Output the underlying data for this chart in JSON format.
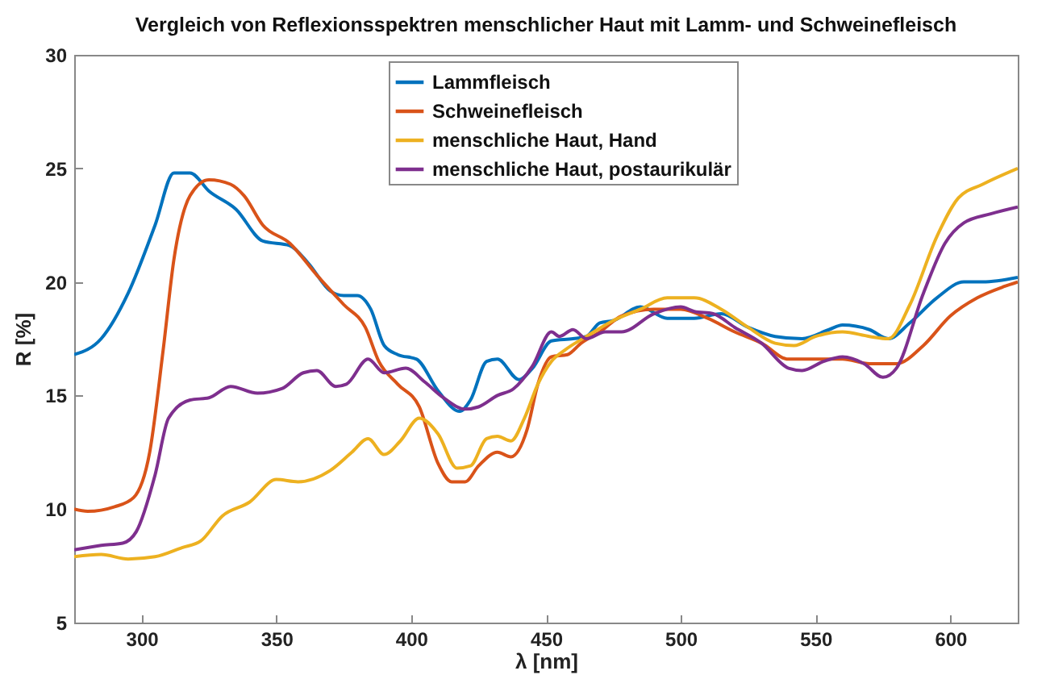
{
  "chart_data": {
    "type": "line",
    "title": "Vergleich von Reflexionsspektren menschlicher Haut mit Lamm- und Schweinefleisch",
    "xlabel": "λ [nm]",
    "ylabel": "R [%]",
    "xlim": [
      275,
      625
    ],
    "xticks": [
      300,
      350,
      400,
      450,
      500,
      550,
      600
    ],
    "ylim": [
      5,
      30
    ],
    "yticks": [
      5,
      10,
      15,
      20,
      25,
      30
    ],
    "grid": false,
    "legend": "top",
    "series": [
      {
        "name": "Lammfleisch",
        "color": "#0072bd",
        "x": [
          275,
          285,
          295,
          305,
          312,
          318,
          325,
          335,
          345,
          355,
          362,
          370,
          375,
          380,
          385,
          390,
          395,
          402,
          410,
          418,
          422,
          428,
          432,
          440,
          445,
          452,
          460,
          465,
          470,
          475,
          485,
          495,
          505,
          515,
          525,
          535,
          545,
          555,
          560,
          570,
          577,
          585,
          595,
          605,
          612,
          625
        ],
        "values": [
          16.8,
          17.5,
          19.5,
          22.5,
          24.8,
          24.8,
          24,
          23.2,
          21.8,
          21.6,
          20.8,
          19.6,
          19.4,
          19.4,
          18.8,
          17.2,
          16.8,
          16.6,
          15.2,
          14.3,
          14.8,
          16.5,
          16.6,
          15.7,
          16.2,
          17.4,
          17.5,
          17.6,
          18.2,
          18.3,
          18.9,
          18.4,
          18.4,
          18.6,
          18,
          17.6,
          17.5,
          17.9,
          18.1,
          17.9,
          17.5,
          18.2,
          19.3,
          20,
          20,
          20.2
        ]
      },
      {
        "name": "Schweinefleisch",
        "color": "#d95319",
        "x": [
          275,
          280,
          290,
          297,
          303,
          308,
          312,
          318,
          325,
          333,
          338,
          345,
          355,
          365,
          375,
          383,
          388,
          395,
          403,
          410,
          415,
          420,
          425,
          432,
          437,
          443,
          447,
          452,
          458,
          463,
          470,
          478,
          490,
          500,
          510,
          520,
          530,
          540,
          550,
          560,
          570,
          580,
          590,
          600,
          610,
          620,
          625
        ],
        "values": [
          10,
          9.9,
          10.1,
          10.5,
          12.5,
          17,
          21,
          23.8,
          24.5,
          24.3,
          23.8,
          22.5,
          21.7,
          20.3,
          19,
          18,
          16.5,
          15.5,
          14.5,
          12,
          11.2,
          11.2,
          11.9,
          12.5,
          12.3,
          13.5,
          15.5,
          16.7,
          16.8,
          17.3,
          17.8,
          18.5,
          18.8,
          18.8,
          18.4,
          17.8,
          17.3,
          16.6,
          16.6,
          16.6,
          16.4,
          16.4,
          17.2,
          18.5,
          19.3,
          19.8,
          20
        ]
      },
      {
        "name": "menschliche Haut, Hand",
        "color": "#edb120",
        "x": [
          275,
          285,
          295,
          305,
          315,
          322,
          330,
          340,
          350,
          358,
          370,
          378,
          384,
          390,
          396,
          403,
          410,
          417,
          422,
          428,
          432,
          437,
          442,
          447,
          452,
          457,
          465,
          475,
          485,
          495,
          505,
          515,
          525,
          535,
          542,
          550,
          560,
          570,
          577,
          585,
          595,
          603,
          612,
          625
        ],
        "values": [
          7.9,
          8,
          7.8,
          7.9,
          8.3,
          8.6,
          9.7,
          10.3,
          11.3,
          11.2,
          11.7,
          12.5,
          13.1,
          12.4,
          13,
          14,
          13.3,
          11.8,
          11.9,
          13.1,
          13.2,
          13,
          14,
          15.5,
          16.5,
          17,
          17.6,
          18.3,
          18.8,
          19.3,
          19.3,
          18.8,
          18,
          17.3,
          17.2,
          17.6,
          17.8,
          17.6,
          17.5,
          19,
          22,
          23.7,
          24.3,
          25
        ]
      },
      {
        "name": "menschliche Haut, postaurikulär",
        "color": "#7e2f8e",
        "x": [
          275,
          285,
          293,
          298,
          305,
          310,
          318,
          325,
          333,
          343,
          352,
          360,
          365,
          372,
          376,
          384,
          390,
          398,
          405,
          412,
          420,
          425,
          432,
          438,
          445,
          452,
          455,
          460,
          465,
          472,
          478,
          490,
          500,
          505,
          512,
          520,
          530,
          540,
          545,
          553,
          560,
          568,
          575,
          580,
          590,
          598,
          605,
          615,
          625
        ],
        "values": [
          8.2,
          8.4,
          8.5,
          9,
          11.5,
          14,
          14.8,
          14.9,
          15.4,
          15.1,
          15.3,
          16,
          16.1,
          15.4,
          15.5,
          16.6,
          16,
          16.2,
          15.6,
          14.9,
          14.4,
          14.5,
          15,
          15.3,
          16.3,
          17.8,
          17.6,
          17.9,
          17.5,
          17.8,
          17.8,
          18.6,
          18.9,
          18.7,
          18.6,
          18,
          17.3,
          16.2,
          16.1,
          16.5,
          16.7,
          16.4,
          15.8,
          16.2,
          19.5,
          21.7,
          22.6,
          23,
          23.3
        ]
      }
    ]
  }
}
